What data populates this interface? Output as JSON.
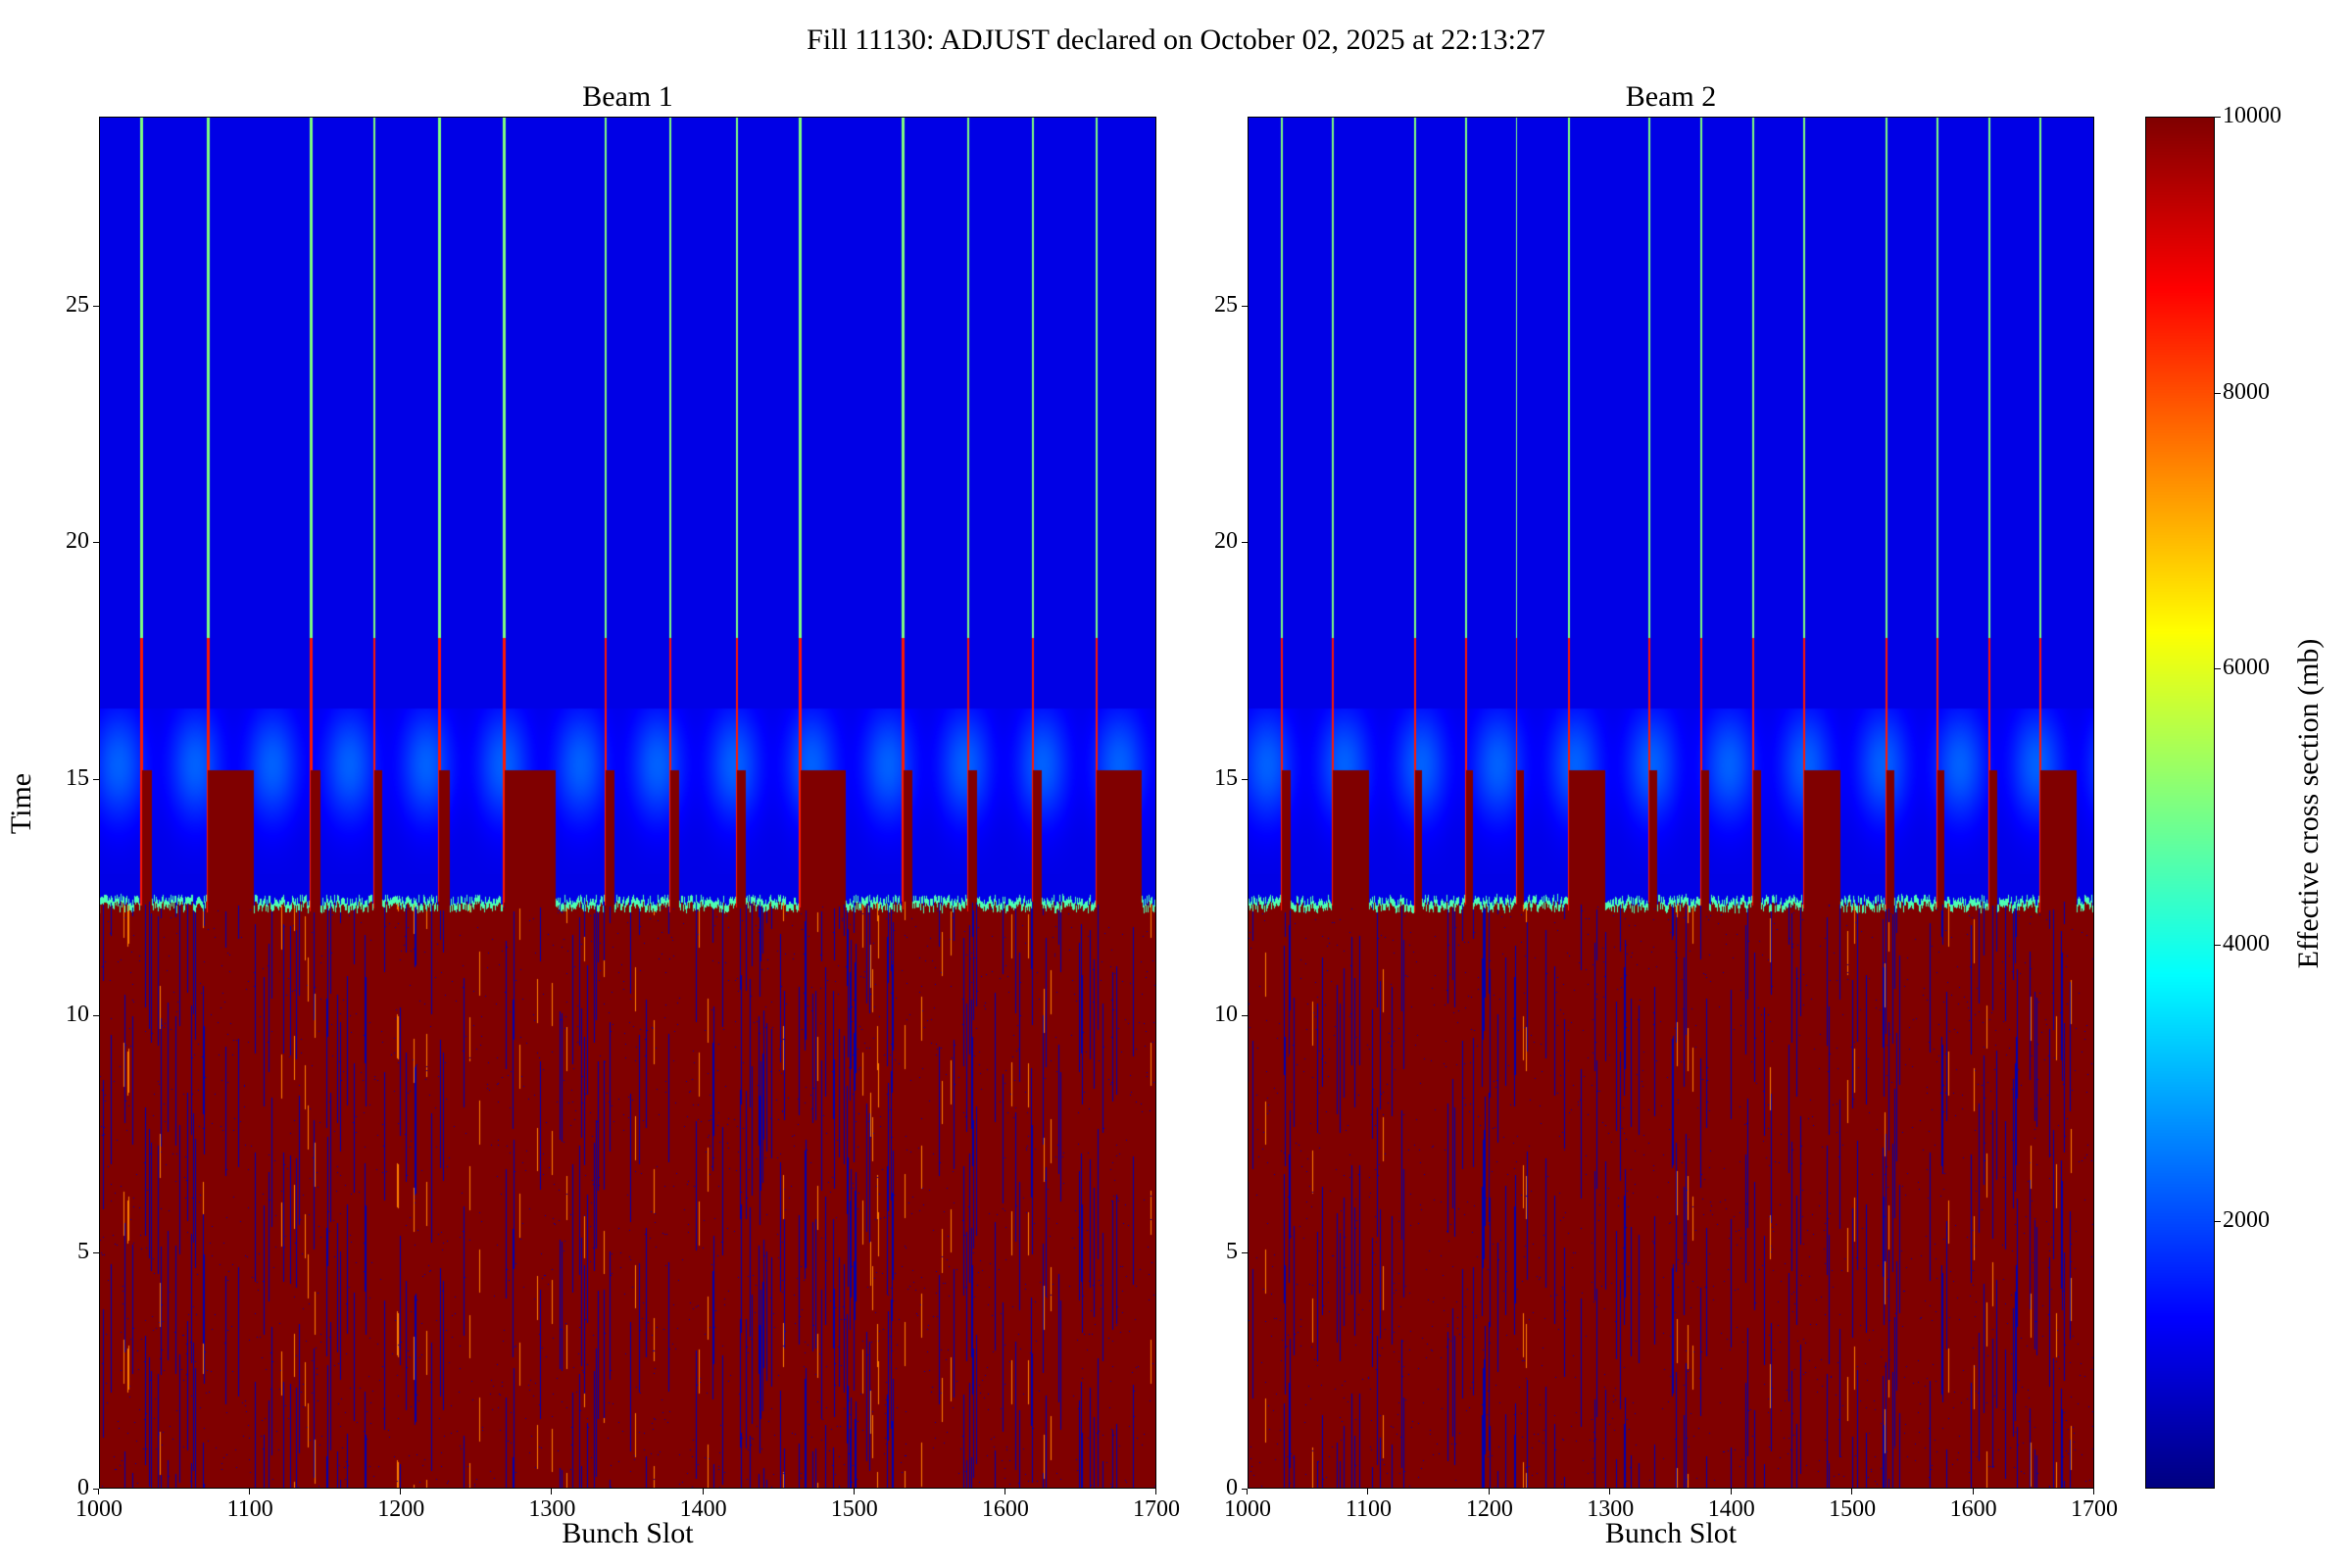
{
  "chart_data": [
    {
      "type": "heatmap",
      "title": "Beam 1",
      "xlabel": "Bunch Slot",
      "ylabel": "Time",
      "xlim": [
        1000,
        1700
      ],
      "ylim": [
        0,
        29
      ],
      "xticks": [
        1000,
        1100,
        1200,
        1300,
        1400,
        1500,
        1600,
        1700
      ],
      "yticks": [
        0,
        5,
        10,
        15,
        20,
        25
      ],
      "transition_time": 12.3,
      "train_top_time": 15.2,
      "trains": [
        [
          1028,
          1035
        ],
        [
          1072,
          1102
        ],
        [
          1140,
          1146
        ],
        [
          1182,
          1187
        ],
        [
          1225,
          1232
        ],
        [
          1268,
          1302
        ],
        [
          1335,
          1341
        ],
        [
          1378,
          1384
        ],
        [
          1422,
          1428
        ],
        [
          1464,
          1494
        ],
        [
          1532,
          1538
        ],
        [
          1575,
          1581
        ],
        [
          1618,
          1624
        ],
        [
          1660,
          1690
        ]
      ]
    },
    {
      "type": "heatmap",
      "title": "Beam 2",
      "xlabel": "Bunch Slot",
      "ylabel": "",
      "xlim": [
        1000,
        1700
      ],
      "ylim": [
        0,
        29
      ],
      "xticks": [
        1000,
        1100,
        1200,
        1300,
        1400,
        1500,
        1600,
        1700
      ],
      "yticks": [
        0,
        5,
        10,
        15,
        20,
        25
      ],
      "transition_time": 12.3,
      "train_top_time": 15.2,
      "trains": [
        [
          1028,
          1035
        ],
        [
          1070,
          1100
        ],
        [
          1138,
          1144
        ],
        [
          1180,
          1186
        ],
        [
          1222,
          1228
        ],
        [
          1265,
          1295
        ],
        [
          1332,
          1338
        ],
        [
          1375,
          1381
        ],
        [
          1418,
          1424
        ],
        [
          1460,
          1490
        ],
        [
          1528,
          1534
        ],
        [
          1570,
          1576
        ],
        [
          1613,
          1619
        ],
        [
          1655,
          1685
        ]
      ]
    }
  ],
  "suptitle": "Fill 11130: ADJUST declared on October 02, 2025 at 22:13:27",
  "colorbar": {
    "label": "Effective cross section (mb)",
    "vmin": 60,
    "vmax": 10000,
    "ticks": [
      2000,
      4000,
      6000,
      8000,
      10000
    ],
    "colormap": "jet"
  }
}
